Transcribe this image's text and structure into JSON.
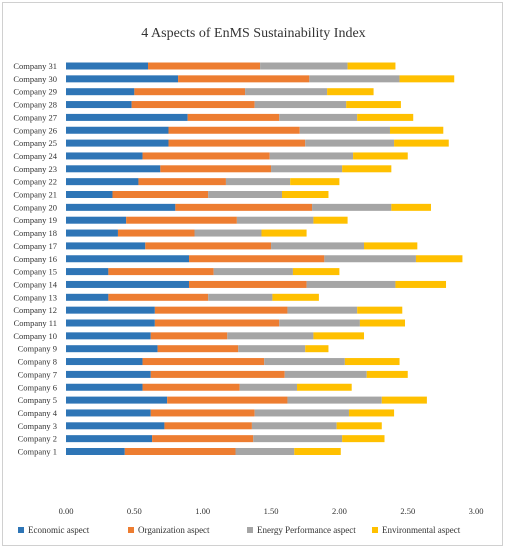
{
  "chart_data": {
    "type": "bar",
    "orientation": "horizontal",
    "stacked": true,
    "title": "4 Aspects of EnMS Sustainability Index",
    "categories": [
      "Company 1",
      "Company 2",
      "Company 3",
      "Company 4",
      "Company 5",
      "Company 6",
      "Company 7",
      "Company 8",
      "Company 9",
      "Company 10",
      "Company 11",
      "Company 12",
      "Company 13",
      "Company 14",
      "Company 15",
      "Company 16",
      "Company 17",
      "Company 18",
      "Company 19",
      "Company 20",
      "Company 21",
      "Company 22",
      "Company 23",
      "Company 24",
      "Company 25",
      "Company 26",
      "Company 27",
      "Company 28",
      "Company 29",
      "Company 30",
      "Company 31"
    ],
    "series": [
      {
        "name": "Economic aspect",
        "color": "#2e75b6",
        "values": [
          0.43,
          0.63,
          0.72,
          0.62,
          0.74,
          0.56,
          0.62,
          0.56,
          0.67,
          0.62,
          0.65,
          0.65,
          0.31,
          0.9,
          0.31,
          0.9,
          0.58,
          0.38,
          0.44,
          0.8,
          0.34,
          0.53,
          0.69,
          0.56,
          0.75,
          0.75,
          0.89,
          0.48,
          0.5,
          0.82,
          0.6
        ]
      },
      {
        "name": "Organization aspect",
        "color": "#ed7d31",
        "values": [
          0.81,
          0.74,
          0.64,
          0.76,
          0.88,
          0.71,
          0.98,
          0.89,
          0.59,
          0.56,
          0.91,
          0.97,
          0.73,
          0.86,
          0.77,
          0.99,
          0.92,
          0.56,
          0.81,
          1.0,
          0.7,
          0.64,
          0.81,
          0.93,
          1.0,
          0.96,
          0.67,
          0.9,
          0.81,
          0.96,
          0.82
        ]
      },
      {
        "name": "Energy Performance aspect",
        "color": "#a5a5a5",
        "values": [
          0.43,
          0.65,
          0.62,
          0.69,
          0.69,
          0.42,
          0.6,
          0.59,
          0.49,
          0.63,
          0.59,
          0.51,
          0.47,
          0.65,
          0.58,
          0.67,
          0.68,
          0.49,
          0.56,
          0.58,
          0.54,
          0.47,
          0.52,
          0.61,
          0.65,
          0.66,
          0.57,
          0.67,
          0.6,
          0.66,
          0.64
        ]
      },
      {
        "name": "Environmental aspect",
        "color": "#ffc000",
        "values": [
          0.34,
          0.31,
          0.33,
          0.33,
          0.33,
          0.4,
          0.3,
          0.4,
          0.17,
          0.37,
          0.33,
          0.33,
          0.34,
          0.37,
          0.34,
          0.34,
          0.39,
          0.33,
          0.25,
          0.29,
          0.34,
          0.36,
          0.36,
          0.4,
          0.4,
          0.39,
          0.41,
          0.4,
          0.34,
          0.4,
          0.35
        ]
      }
    ],
    "xlim": [
      0,
      3
    ],
    "xticks": [
      "0.00",
      "0.50",
      "1.00",
      "1.50",
      "2.00",
      "2.50",
      "3.00"
    ],
    "grid": false,
    "legend_position": "bottom"
  }
}
